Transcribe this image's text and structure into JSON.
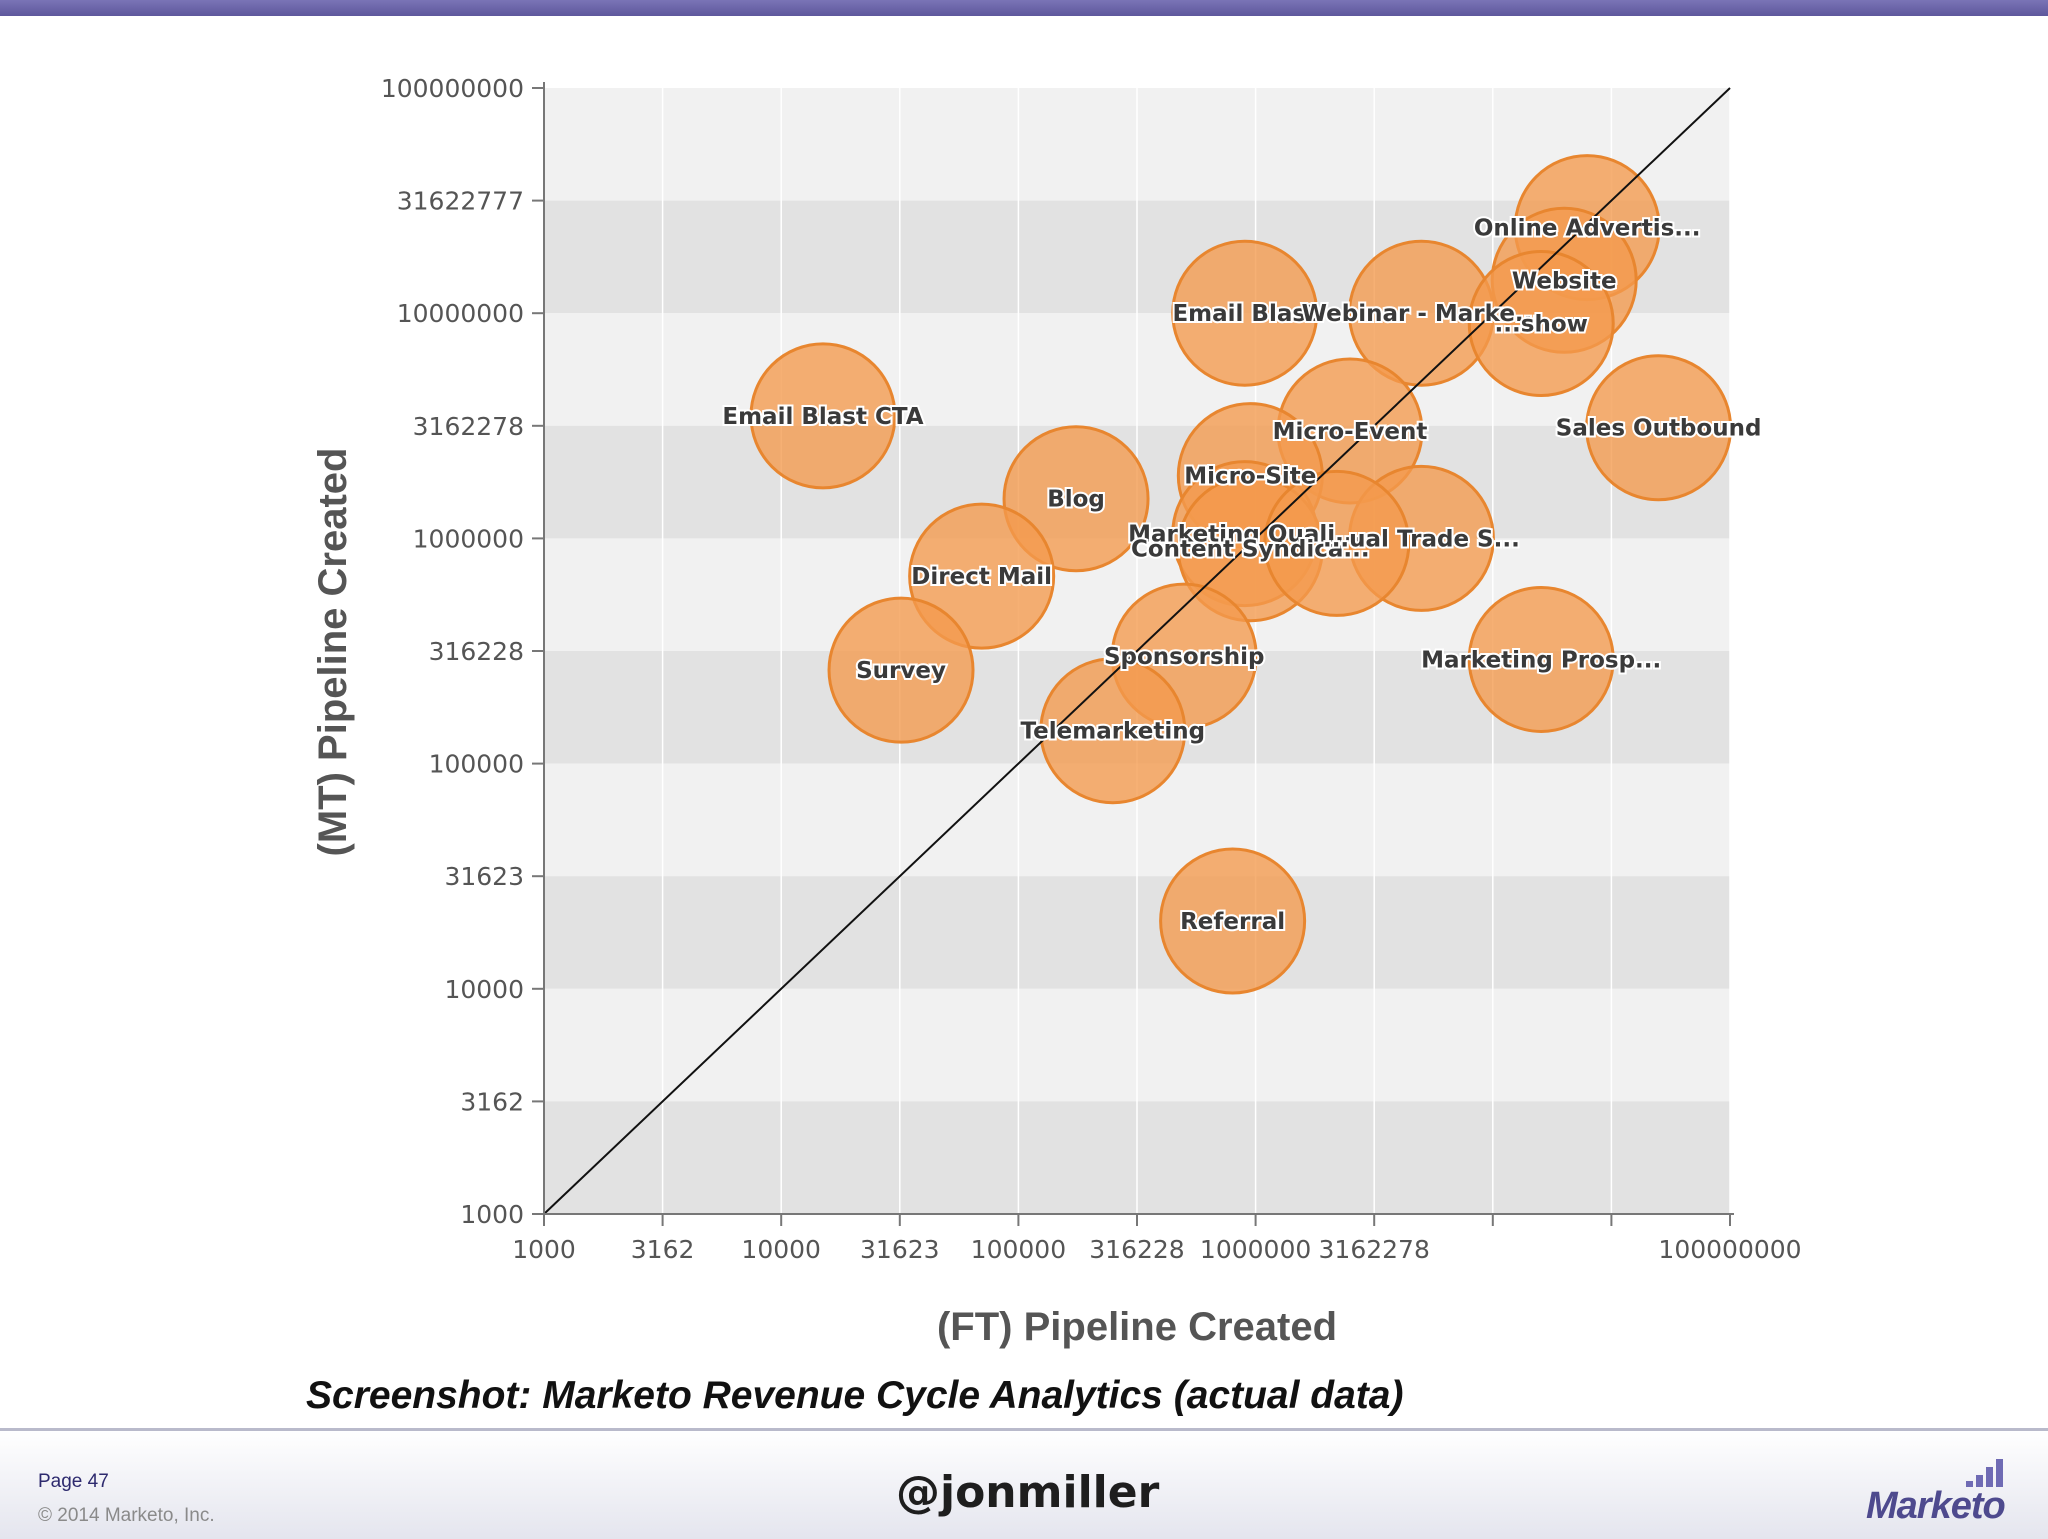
{
  "chart_data": {
    "type": "scatter",
    "subtype": "bubble",
    "x_scale": "log",
    "y_scale": "log",
    "xlabel": "(FT) Pipeline Created",
    "ylabel": "(MT) Pipeline Created",
    "xlim": [
      1000,
      100000000
    ],
    "ylim": [
      1000,
      100000000
    ],
    "x_ticks": [
      "1000",
      "3162",
      "10000",
      "31623",
      "100000",
      "316228",
      "1000000",
      "3162278",
      "",
      "",
      "100000000"
    ],
    "y_ticks": [
      "100000000",
      "31622777",
      "10000000",
      "3162278",
      "1000000",
      "316228",
      "100000",
      "31623",
      "10000",
      "3162",
      "1000"
    ],
    "reference_line": "y = x",
    "bubble_color": "#f39a4d",
    "grid": "horizontal bands",
    "legend": "none",
    "points": [
      {
        "label": "Email Blast CTA",
        "x": 15000,
        "y": 3500000
      },
      {
        "label": "Email Blast",
        "x": 900000,
        "y": 10000000
      },
      {
        "label": "Online Advertis...",
        "x": 25000000,
        "y": 24000000
      },
      {
        "label": "Website",
        "x": 20000000,
        "y": 14000000
      },
      {
        "label": "Webinar - Marke...",
        "x": 5000000,
        "y": 10000000
      },
      {
        "label": "...show",
        "x": 16000000,
        "y": 9000000
      },
      {
        "label": "Micro-Event",
        "x": 2500000,
        "y": 3000000
      },
      {
        "label": "Sales Outbound",
        "x": 50000000,
        "y": 3100000
      },
      {
        "label": "Micro-Site",
        "x": 950000,
        "y": 1900000
      },
      {
        "label": "Blog",
        "x": 175000,
        "y": 1500000
      },
      {
        "label": "Marketing Quali...",
        "x": 900000,
        "y": 1050000
      },
      {
        "label": "Content Syndica...",
        "x": 950000,
        "y": 900000
      },
      {
        "label": "...ual Trade S...",
        "x": 5000000,
        "y": 1000000
      },
      {
        "label": "",
        "x": 2200000,
        "y": 950000
      },
      {
        "label": "Direct Mail",
        "x": 70000,
        "y": 680000
      },
      {
        "label": "Survey",
        "x": 32000,
        "y": 260000
      },
      {
        "label": "Sponsorship",
        "x": 500000,
        "y": 300000
      },
      {
        "label": "Marketing Prosp...",
        "x": 16000000,
        "y": 290000
      },
      {
        "label": "Telemarketing",
        "x": 250000,
        "y": 140000
      },
      {
        "label": "Referral",
        "x": 800000,
        "y": 20000
      }
    ]
  },
  "caption": "Screenshot: Marketo Revenue Cycle Analytics (actual data)",
  "footer": {
    "page": "Page 47",
    "copyright": "© 2014 Marketo, Inc.",
    "handle": "@jonmiller",
    "logo_text": "Marketo"
  }
}
